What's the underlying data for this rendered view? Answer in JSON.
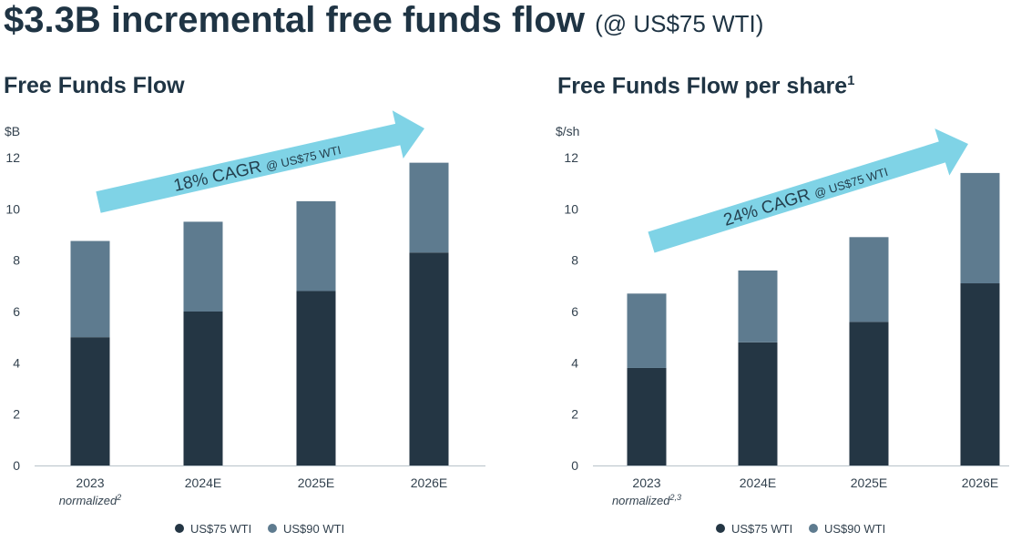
{
  "header": {
    "title": "$3.3B incremental free funds flow",
    "subtitle": "(@ US$75 WTI)"
  },
  "colors": {
    "base": "#243644",
    "upside": "#5e7b8f",
    "arrow": "#7fd3e6",
    "axis": "#b8c2c9"
  },
  "chart_data": [
    {
      "type": "bar",
      "title": "Free Funds Flow",
      "ylabel": "$B",
      "ylim": [
        0,
        12
      ],
      "yticks": [
        "0",
        "2",
        "4",
        "6",
        "8",
        "10",
        "12"
      ],
      "categories": [
        "2023",
        "2024E",
        "2025E",
        "2026E"
      ],
      "category_notes": [
        "normalized",
        "",
        "",
        ""
      ],
      "note_sup": [
        "2",
        "",
        "",
        ""
      ],
      "series": [
        {
          "name": "US$75 WTI",
          "values": [
            5.0,
            6.0,
            6.8,
            8.3
          ]
        },
        {
          "name": "US$90 WTI",
          "values": [
            3.75,
            3.5,
            3.5,
            3.5
          ]
        }
      ],
      "annotation": {
        "text": "18% CAGR",
        "small": "@ US$75 WTI"
      }
    },
    {
      "type": "bar",
      "title": "Free Funds Flow per share",
      "title_sup": "1",
      "ylabel": "$/sh",
      "ylim": [
        0,
        12
      ],
      "yticks": [
        "0",
        "2",
        "4",
        "6",
        "8",
        "10",
        "12"
      ],
      "categories": [
        "2023",
        "2024E",
        "2025E",
        "2026E"
      ],
      "category_notes": [
        "normalized",
        "",
        "",
        ""
      ],
      "note_sup": [
        "2,3",
        "",
        "",
        ""
      ],
      "series": [
        {
          "name": "US$75 WTI",
          "values": [
            3.8,
            4.8,
            5.6,
            7.1
          ]
        },
        {
          "name": "US$90 WTI",
          "values": [
            2.9,
            2.8,
            3.3,
            4.3
          ]
        }
      ],
      "annotation": {
        "text": "24% CAGR",
        "small": "@ US$75 WTI"
      }
    }
  ]
}
